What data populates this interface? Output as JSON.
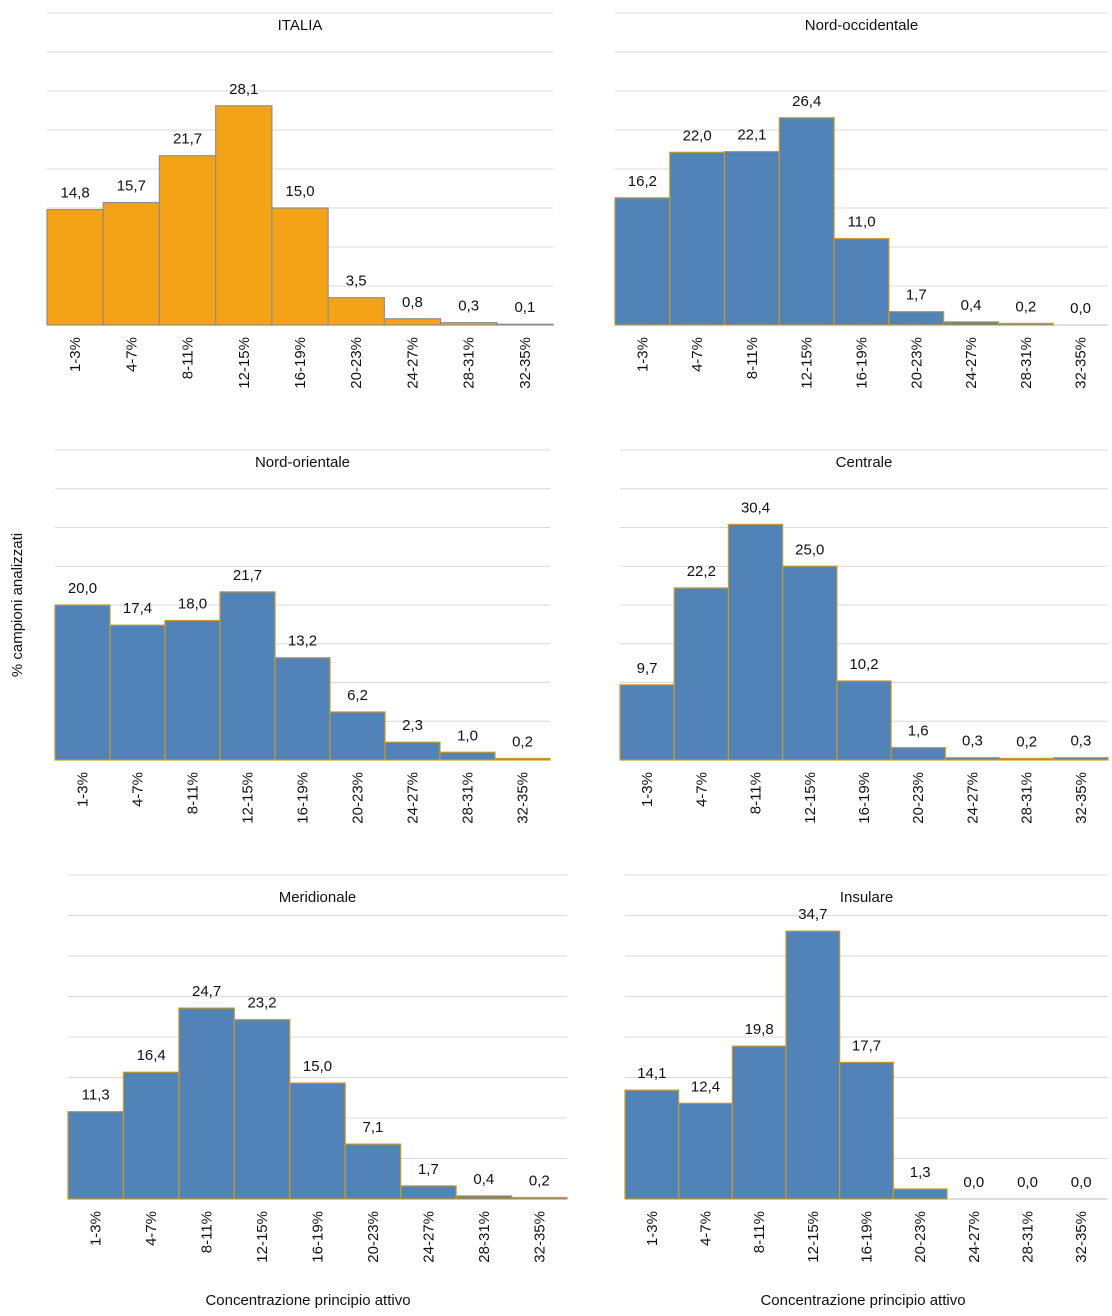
{
  "ylabel": "% campioni analizzati",
  "xlabel": "Concentrazione principio attivo",
  "colors": {
    "highlight": "#F5A316",
    "bar": "#5283B8",
    "bar_edge": "#C79A2E",
    "grid": "#D9D9D9",
    "axis": "#BFBFBF"
  },
  "chart_data": [
    {
      "type": "bar",
      "title": "ITALIA",
      "xlabel": "",
      "ylabel": "% campioni analizzati",
      "categories": [
        "1-3%",
        "4-7%",
        "8-11%",
        "12-15%",
        "16-19%",
        "20-23%",
        "24-27%",
        "28-31%",
        "32-35%"
      ],
      "values": [
        14.8,
        15.7,
        21.7,
        28.1,
        15.0,
        3.5,
        0.8,
        0.3,
        0.1
      ],
      "labels": [
        "14,8",
        "15,7",
        "21,7",
        "28,1",
        "15,0",
        "3,5",
        "0,8",
        "0,3",
        "0,1"
      ],
      "color": "#F5A316",
      "grid": true
    },
    {
      "type": "bar",
      "title": "Nord-occidentale",
      "xlabel": "",
      "ylabel": "% campioni analizzati",
      "categories": [
        "1-3%",
        "4-7%",
        "8-11%",
        "12-15%",
        "16-19%",
        "20-23%",
        "24-27%",
        "28-31%",
        "32-35%"
      ],
      "values": [
        16.2,
        22.0,
        22.1,
        26.4,
        11.0,
        1.7,
        0.4,
        0.2,
        0.0
      ],
      "labels": [
        "16,2",
        "22,0",
        "22,1",
        "26,4",
        "11,0",
        "1,7",
        "0,4",
        "0,2",
        "0,0"
      ],
      "color": "#5283B8",
      "grid": true
    },
    {
      "type": "bar",
      "title": "Nord-orientale",
      "xlabel": "",
      "ylabel": "% campioni analizzati",
      "categories": [
        "1-3%",
        "4-7%",
        "8-11%",
        "12-15%",
        "16-19%",
        "20-23%",
        "24-27%",
        "28-31%",
        "32-35%"
      ],
      "values": [
        20.0,
        17.4,
        18.0,
        21.7,
        13.2,
        6.2,
        2.3,
        1.0,
        0.2
      ],
      "labels": [
        "20,0",
        "17,4",
        "18,0",
        "21,7",
        "13,2",
        "6,2",
        "2,3",
        "1,0",
        "0,2"
      ],
      "color": "#5283B8",
      "grid": true
    },
    {
      "type": "bar",
      "title": "Centrale",
      "xlabel": "",
      "ylabel": "% campioni analizzati",
      "categories": [
        "1-3%",
        "4-7%",
        "8-11%",
        "12-15%",
        "16-19%",
        "20-23%",
        "24-27%",
        "28-31%",
        "32-35%"
      ],
      "values": [
        9.7,
        22.2,
        30.4,
        25.0,
        10.2,
        1.6,
        0.3,
        0.2,
        0.3
      ],
      "labels": [
        "9,7",
        "22,2",
        "30,4",
        "25,0",
        "10,2",
        "1,6",
        "0,3",
        "0,2",
        "0,3"
      ],
      "color": "#5283B8",
      "grid": true
    },
    {
      "type": "bar",
      "title": "Meridionale",
      "xlabel": "Concentrazione principio attivo",
      "ylabel": "% campioni analizzati",
      "categories": [
        "1-3%",
        "4-7%",
        "8-11%",
        "12-15%",
        "16-19%",
        "20-23%",
        "24-27%",
        "28-31%",
        "32-35%"
      ],
      "values": [
        11.3,
        16.4,
        24.7,
        23.2,
        15.0,
        7.1,
        1.7,
        0.4,
        0.2
      ],
      "labels": [
        "11,3",
        "16,4",
        "24,7",
        "23,2",
        "15,0",
        "7,1",
        "1,7",
        "0,4",
        "0,2"
      ],
      "color": "#5283B8",
      "grid": true
    },
    {
      "type": "bar",
      "title": "Insulare",
      "xlabel": "Concentrazione principio attivo",
      "ylabel": "% campioni analizzati",
      "categories": [
        "1-3%",
        "4-7%",
        "8-11%",
        "12-15%",
        "16-19%",
        "20-23%",
        "24-27%",
        "28-31%",
        "32-35%"
      ],
      "values": [
        14.1,
        12.4,
        19.8,
        34.7,
        17.7,
        1.3,
        0.0,
        0.0,
        0.0
      ],
      "labels": [
        "14,1",
        "12,4",
        "19,8",
        "34,7",
        "17,7",
        "1,3",
        "0,0",
        "0,0",
        "0,0"
      ],
      "color": "#5283B8",
      "grid": true
    }
  ]
}
